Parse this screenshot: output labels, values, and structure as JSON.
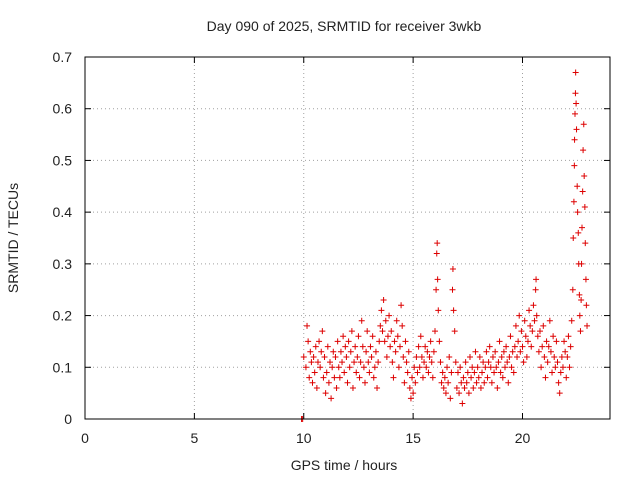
{
  "chart_data": {
    "type": "scatter",
    "title": "Day 090 of 2025, SRMTID for receiver 3wkb",
    "xlabel": "GPS time / hours",
    "ylabel": "SRMTID / TECUs",
    "xlim": [
      0,
      24
    ],
    "ylim": [
      0,
      0.7
    ],
    "x_ticks": [
      0,
      5,
      10,
      15,
      20
    ],
    "x_tick_labels": [
      "0",
      "5",
      "10",
      "15",
      "20"
    ],
    "y_ticks": [
      0,
      0.1,
      0.2,
      0.3,
      0.4,
      0.5,
      0.6,
      0.7
    ],
    "y_tick_labels": [
      "0",
      "0.1",
      "0.2",
      "0.3",
      "0.4",
      "0.5",
      "0.6",
      "0.7"
    ],
    "grid": true,
    "legend": "none",
    "marker": "plus",
    "color": "#dd0000",
    "series": [
      {
        "name": "SRMTID",
        "points": [
          [
            9.9,
            0.0
          ],
          [
            9.95,
            0.0
          ],
          [
            10.0,
            0.12
          ],
          [
            10.1,
            0.1
          ],
          [
            10.15,
            0.18
          ],
          [
            10.2,
            0.15
          ],
          [
            10.25,
            0.08
          ],
          [
            10.3,
            0.13
          ],
          [
            10.35,
            0.11
          ],
          [
            10.4,
            0.07
          ],
          [
            10.45,
            0.12
          ],
          [
            10.5,
            0.09
          ],
          [
            10.55,
            0.14
          ],
          [
            10.6,
            0.06
          ],
          [
            10.65,
            0.11
          ],
          [
            10.7,
            0.15
          ],
          [
            10.75,
            0.1
          ],
          [
            10.8,
            0.13
          ],
          [
            10.85,
            0.17
          ],
          [
            10.9,
            0.08
          ],
          [
            10.95,
            0.12
          ],
          [
            11.0,
            0.05
          ],
          [
            11.05,
            0.09
          ],
          [
            11.1,
            0.14
          ],
          [
            11.15,
            0.07
          ],
          [
            11.2,
            0.11
          ],
          [
            11.25,
            0.04
          ],
          [
            11.3,
            0.1
          ],
          [
            11.35,
            0.13
          ],
          [
            11.4,
            0.08
          ],
          [
            11.45,
            0.12
          ],
          [
            11.5,
            0.06
          ],
          [
            11.55,
            0.15
          ],
          [
            11.6,
            0.1
          ],
          [
            11.65,
            0.08
          ],
          [
            11.7,
            0.13
          ],
          [
            11.75,
            0.11
          ],
          [
            11.8,
            0.16
          ],
          [
            11.85,
            0.09
          ],
          [
            11.9,
            0.14
          ],
          [
            11.95,
            0.12
          ],
          [
            12.0,
            0.07
          ],
          [
            12.05,
            0.15
          ],
          [
            12.1,
            0.1
          ],
          [
            12.15,
            0.13
          ],
          [
            12.2,
            0.17
          ],
          [
            12.25,
            0.06
          ],
          [
            12.3,
            0.11
          ],
          [
            12.35,
            0.14
          ],
          [
            12.4,
            0.09
          ],
          [
            12.45,
            0.12
          ],
          [
            12.5,
            0.16
          ],
          [
            12.55,
            0.08
          ],
          [
            12.6,
            0.11
          ],
          [
            12.65,
            0.19
          ],
          [
            12.7,
            0.14
          ],
          [
            12.75,
            0.1
          ],
          [
            12.8,
            0.07
          ],
          [
            12.85,
            0.13
          ],
          [
            12.9,
            0.17
          ],
          [
            12.95,
            0.11
          ],
          [
            13.0,
            0.09
          ],
          [
            13.05,
            0.14
          ],
          [
            13.1,
            0.12
          ],
          [
            13.15,
            0.16
          ],
          [
            13.2,
            0.08
          ],
          [
            13.25,
            0.1
          ],
          [
            13.3,
            0.13
          ],
          [
            13.35,
            0.06
          ],
          [
            13.4,
            0.11
          ],
          [
            13.45,
            0.15
          ],
          [
            13.5,
            0.18
          ],
          [
            13.55,
            0.21
          ],
          [
            13.6,
            0.17
          ],
          [
            13.65,
            0.23
          ],
          [
            13.7,
            0.15
          ],
          [
            13.75,
            0.19
          ],
          [
            13.8,
            0.12
          ],
          [
            13.85,
            0.16
          ],
          [
            13.9,
            0.2
          ],
          [
            13.95,
            0.14
          ],
          [
            14.0,
            0.17
          ],
          [
            14.05,
            0.11
          ],
          [
            14.1,
            0.08
          ],
          [
            14.15,
            0.15
          ],
          [
            14.2,
            0.13
          ],
          [
            14.25,
            0.19
          ],
          [
            14.3,
            0.16
          ],
          [
            14.35,
            0.1
          ],
          [
            14.4,
            0.14
          ],
          [
            14.45,
            0.22
          ],
          [
            14.5,
            0.18
          ],
          [
            14.55,
            0.12
          ],
          [
            14.6,
            0.07
          ],
          [
            14.65,
            0.15
          ],
          [
            14.7,
            0.11
          ],
          [
            14.75,
            0.09
          ],
          [
            14.8,
            0.13
          ],
          [
            14.85,
            0.06
          ],
          [
            14.9,
            0.04
          ],
          [
            14.95,
            0.08
          ],
          [
            15.0,
            0.05
          ],
          [
            15.05,
            0.1
          ],
          [
            15.1,
            0.07
          ],
          [
            15.15,
            0.12
          ],
          [
            15.2,
            0.09
          ],
          [
            15.25,
            0.14
          ],
          [
            15.3,
            0.1
          ],
          [
            15.35,
            0.16
          ],
          [
            15.4,
            0.12
          ],
          [
            15.45,
            0.08
          ],
          [
            15.5,
            0.11
          ],
          [
            15.55,
            0.14
          ],
          [
            15.6,
            0.1
          ],
          [
            15.65,
            0.13
          ],
          [
            15.7,
            0.09
          ],
          [
            15.75,
            0.12
          ],
          [
            15.8,
            0.15
          ],
          [
            15.85,
            0.11
          ],
          [
            15.9,
            0.08
          ],
          [
            15.95,
            0.13
          ],
          [
            16.0,
            0.17
          ],
          [
            16.05,
            0.25
          ],
          [
            16.08,
            0.32
          ],
          [
            16.1,
            0.34
          ],
          [
            16.12,
            0.27
          ],
          [
            16.15,
            0.21
          ],
          [
            16.2,
            0.15
          ],
          [
            16.25,
            0.11
          ],
          [
            16.3,
            0.07
          ],
          [
            16.35,
            0.09
          ],
          [
            16.4,
            0.06
          ],
          [
            16.45,
            0.08
          ],
          [
            16.5,
            0.05
          ],
          [
            16.55,
            0.1
          ],
          [
            16.6,
            0.07
          ],
          [
            16.65,
            0.12
          ],
          [
            16.7,
            0.04
          ],
          [
            16.75,
            0.09
          ],
          [
            16.8,
            0.25
          ],
          [
            16.82,
            0.29
          ],
          [
            16.85,
            0.21
          ],
          [
            16.9,
            0.17
          ],
          [
            16.95,
            0.11
          ],
          [
            17.0,
            0.06
          ],
          [
            17.05,
            0.09
          ],
          [
            17.1,
            0.05
          ],
          [
            17.15,
            0.1
          ],
          [
            17.2,
            0.07
          ],
          [
            17.25,
            0.03
          ],
          [
            17.3,
            0.08
          ],
          [
            17.35,
            0.06
          ],
          [
            17.4,
            0.11
          ],
          [
            17.45,
            0.07
          ],
          [
            17.5,
            0.09
          ],
          [
            17.55,
            0.05
          ],
          [
            17.6,
            0.12
          ],
          [
            17.65,
            0.08
          ],
          [
            17.7,
            0.1
          ],
          [
            17.75,
            0.06
          ],
          [
            17.8,
            0.09
          ],
          [
            17.85,
            0.13
          ],
          [
            17.9,
            0.07
          ],
          [
            17.95,
            0.1
          ],
          [
            18.0,
            0.08
          ],
          [
            18.05,
            0.12
          ],
          [
            18.1,
            0.06
          ],
          [
            18.15,
            0.09
          ],
          [
            18.2,
            0.11
          ],
          [
            18.25,
            0.07
          ],
          [
            18.3,
            0.1
          ],
          [
            18.35,
            0.13
          ],
          [
            18.4,
            0.08
          ],
          [
            18.45,
            0.11
          ],
          [
            18.5,
            0.14
          ],
          [
            18.55,
            0.1
          ],
          [
            18.6,
            0.07
          ],
          [
            18.65,
            0.12
          ],
          [
            18.7,
            0.09
          ],
          [
            18.75,
            0.13
          ],
          [
            18.8,
            0.1
          ],
          [
            18.85,
            0.06
          ],
          [
            18.9,
            0.11
          ],
          [
            18.95,
            0.15
          ],
          [
            19.0,
            0.09
          ],
          [
            19.05,
            0.12
          ],
          [
            19.1,
            0.08
          ],
          [
            19.15,
            0.13
          ],
          [
            19.2,
            0.1
          ],
          [
            19.25,
            0.14
          ],
          [
            19.3,
            0.11
          ],
          [
            19.35,
            0.07
          ],
          [
            19.4,
            0.12
          ],
          [
            19.45,
            0.16
          ],
          [
            19.5,
            0.1
          ],
          [
            19.55,
            0.13
          ],
          [
            19.6,
            0.09
          ],
          [
            19.65,
            0.14
          ],
          [
            19.7,
            0.18
          ],
          [
            19.75,
            0.12
          ],
          [
            19.8,
            0.15
          ],
          [
            19.85,
            0.2
          ],
          [
            19.9,
            0.13
          ],
          [
            19.95,
            0.17
          ],
          [
            20.0,
            0.14
          ],
          [
            20.05,
            0.11
          ],
          [
            20.1,
            0.19
          ],
          [
            20.15,
            0.16
          ],
          [
            20.2,
            0.12
          ],
          [
            20.25,
            0.15
          ],
          [
            20.3,
            0.21
          ],
          [
            20.35,
            0.18
          ],
          [
            20.4,
            0.14
          ],
          [
            20.45,
            0.17
          ],
          [
            20.5,
            0.22
          ],
          [
            20.55,
            0.19
          ],
          [
            20.6,
            0.25
          ],
          [
            20.62,
            0.27
          ],
          [
            20.65,
            0.2
          ],
          [
            20.7,
            0.16
          ],
          [
            20.75,
            0.13
          ],
          [
            20.8,
            0.17
          ],
          [
            20.85,
            0.1
          ],
          [
            20.9,
            0.14
          ],
          [
            20.95,
            0.18
          ],
          [
            21.0,
            0.12
          ],
          [
            21.05,
            0.08
          ],
          [
            21.1,
            0.15
          ],
          [
            21.15,
            0.11
          ],
          [
            21.2,
            0.14
          ],
          [
            21.25,
            0.19
          ],
          [
            21.3,
            0.13
          ],
          [
            21.35,
            0.09
          ],
          [
            21.4,
            0.16
          ],
          [
            21.45,
            0.12
          ],
          [
            21.5,
            0.1
          ],
          [
            21.55,
            0.15
          ],
          [
            21.6,
            0.11
          ],
          [
            21.65,
            0.07
          ],
          [
            21.7,
            0.05
          ],
          [
            21.75,
            0.09
          ],
          [
            21.8,
            0.12
          ],
          [
            21.85,
            0.1
          ],
          [
            21.9,
            0.15
          ],
          [
            21.95,
            0.13
          ],
          [
            22.0,
            0.08
          ],
          [
            22.05,
            0.12
          ],
          [
            22.1,
            0.16
          ],
          [
            22.15,
            0.1
          ],
          [
            22.2,
            0.14
          ],
          [
            22.25,
            0.19
          ],
          [
            22.3,
            0.25
          ],
          [
            22.32,
            0.35
          ],
          [
            22.35,
            0.42
          ],
          [
            22.37,
            0.49
          ],
          [
            22.38,
            0.54
          ],
          [
            22.4,
            0.59
          ],
          [
            22.42,
            0.63
          ],
          [
            22.43,
            0.67
          ],
          [
            22.45,
            0.61
          ],
          [
            22.47,
            0.56
          ],
          [
            22.5,
            0.45
          ],
          [
            22.52,
            0.4
          ],
          [
            22.55,
            0.36
          ],
          [
            22.57,
            0.3
          ],
          [
            22.6,
            0.24
          ],
          [
            22.62,
            0.2
          ],
          [
            22.65,
            0.17
          ],
          [
            22.68,
            0.23
          ],
          [
            22.7,
            0.3
          ],
          [
            22.72,
            0.37
          ],
          [
            22.75,
            0.44
          ],
          [
            22.77,
            0.52
          ],
          [
            22.8,
            0.57
          ],
          [
            22.82,
            0.47
          ],
          [
            22.85,
            0.41
          ],
          [
            22.87,
            0.34
          ],
          [
            22.9,
            0.27
          ],
          [
            22.92,
            0.22
          ],
          [
            22.95,
            0.18
          ]
        ]
      }
    ]
  }
}
